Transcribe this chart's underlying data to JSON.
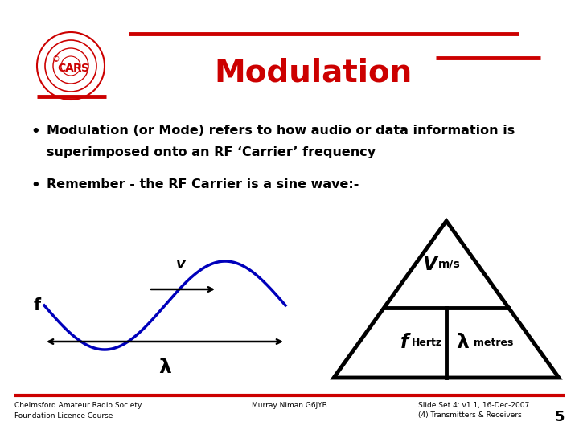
{
  "title": "Modulation",
  "title_color": "#cc0000",
  "title_fontsize": 28,
  "bg_color": "#ffffff",
  "bullet1_line1": "Modulation (or Mode) refers to how audio or data information is",
  "bullet1_line2": "superimposed onto an RF ‘Carrier’ frequency",
  "bullet2": "Remember - the RF Carrier is a sine wave:-",
  "footer_left": "Chelmsford Amateur Radio Society\nFoundation Licence Course",
  "footer_center": "Murray Niman G6JYB",
  "footer_right": "Slide Set 4: v1.1, 16-Dec-2007\n(4) Transmitters & Receivers",
  "footer_page": "5",
  "red_color": "#cc0000",
  "black_color": "#000000",
  "blue_color": "#0000bb"
}
